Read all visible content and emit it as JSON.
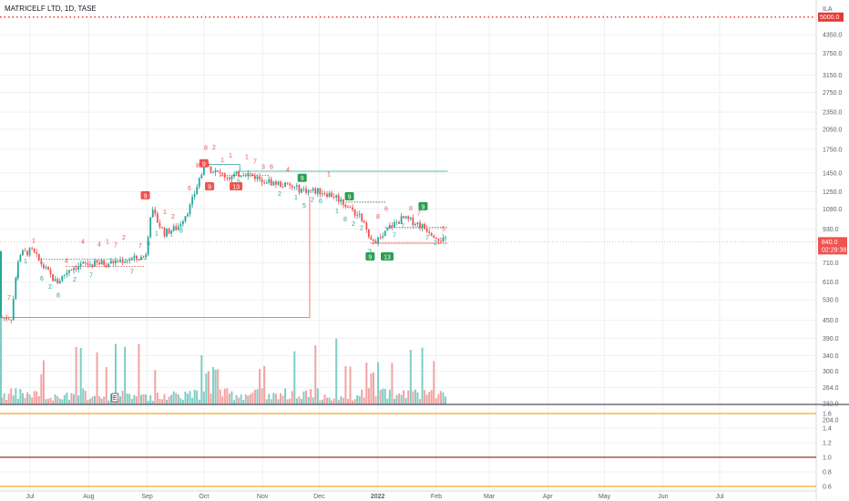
{
  "header": {
    "title": "MATRICELF LTD, 1D, TASE",
    "scale_mode": "ILA"
  },
  "price_badge": {
    "value": "840.0",
    "countdown": "02:29:38"
  },
  "target_badge": {
    "value": "5000.0"
  },
  "colors": {
    "up": "#26a69a",
    "down": "#ef5350",
    "up_vol": "#7fcdc4",
    "down_vol": "#f2a3a3",
    "grid": "#eef0f3",
    "axis_text": "#5d606b",
    "target_line": "#e53935",
    "level_1": "#f5a623",
    "level_2": "#8d3b2b"
  },
  "chart_data": [
    {
      "type": "candlestick",
      "title": "MATRICELF LTD, 1D, TASE",
      "x_tick_labels": [
        "Jul",
        "Aug",
        "Sep",
        "Oct",
        "Nov",
        "Dec",
        "2022",
        "Feb",
        "Mar",
        "Apr",
        "May",
        "Jun",
        "Jul"
      ],
      "y_tick_labels": [
        "204.0",
        "232.0",
        "264.0",
        "300.0",
        "340.0",
        "390.0",
        "450.0",
        "530.0",
        "610.0",
        "710.0",
        "930.0",
        "1090.0",
        "1250.0",
        "1450.0",
        "1750.0",
        "2050.0",
        "2350.0",
        "2750.0",
        "3150.0",
        "3750.0",
        "4350.0"
      ],
      "y_scale": "log",
      "last_price": 840,
      "target_level": 5000,
      "price_path": [
        {
          "date": "2021-06-21",
          "price": 460
        },
        {
          "date": "2021-06-25",
          "price": 760
        },
        {
          "date": "2021-07-02",
          "price": 780
        },
        {
          "date": "2021-07-08",
          "price": 690
        },
        {
          "date": "2021-07-15",
          "price": 605
        },
        {
          "date": "2021-07-22",
          "price": 680
        },
        {
          "date": "2021-07-29",
          "price": 700
        },
        {
          "date": "2021-08-05",
          "price": 705
        },
        {
          "date": "2021-08-12",
          "price": 710
        },
        {
          "date": "2021-08-19",
          "price": 725
        },
        {
          "date": "2021-08-26",
          "price": 735
        },
        {
          "date": "2021-08-31",
          "price": 745
        },
        {
          "date": "2021-09-03",
          "price": 1080
        },
        {
          "date": "2021-09-10",
          "price": 900
        },
        {
          "date": "2021-09-17",
          "price": 940
        },
        {
          "date": "2021-09-24",
          "price": 1120
        },
        {
          "date": "2021-10-01",
          "price": 1550
        },
        {
          "date": "2021-10-08",
          "price": 1450
        },
        {
          "date": "2021-10-15",
          "price": 1400
        },
        {
          "date": "2021-10-22",
          "price": 1460
        },
        {
          "date": "2021-10-29",
          "price": 1400
        },
        {
          "date": "2021-11-05",
          "price": 1350
        },
        {
          "date": "2021-11-12",
          "price": 1320
        },
        {
          "date": "2021-11-19",
          "price": 1280
        },
        {
          "date": "2021-11-26",
          "price": 1260
        },
        {
          "date": "2021-12-03",
          "price": 1250
        },
        {
          "date": "2021-12-10",
          "price": 1200
        },
        {
          "date": "2021-12-17",
          "price": 1100
        },
        {
          "date": "2021-12-24",
          "price": 1000
        },
        {
          "date": "2021-12-28",
          "price": 830
        },
        {
          "date": "2022-01-03",
          "price": 860
        },
        {
          "date": "2022-01-07",
          "price": 940
        },
        {
          "date": "2022-01-14",
          "price": 1010
        },
        {
          "date": "2022-01-21",
          "price": 980
        },
        {
          "date": "2022-01-28",
          "price": 920
        },
        {
          "date": "2022-02-03",
          "price": 860
        },
        {
          "date": "2022-02-07",
          "price": 840
        }
      ],
      "td_labels": [
        {
          "text": "9",
          "color": "red",
          "date": "2021-08-31",
          "price": 1210
        },
        {
          "text": "9",
          "color": "red",
          "date": "2021-10-01",
          "price": 1560
        },
        {
          "text": "9",
          "color": "red",
          "date": "2021-10-04",
          "price": 1300
        },
        {
          "text": "13",
          "color": "red",
          "date": "2021-10-18",
          "price": 1300
        },
        {
          "text": "9",
          "color": "green",
          "date": "2021-11-22",
          "price": 1390
        },
        {
          "text": "9",
          "color": "green",
          "date": "2021-12-17",
          "price": 1200
        },
        {
          "text": "9",
          "color": "green",
          "date": "2021-12-28",
          "price": 745
        },
        {
          "text": "13",
          "color": "green",
          "date": "2022-01-06",
          "price": 745
        },
        {
          "text": "9",
          "color": "green",
          "date": "2022-01-25",
          "price": 1110
        }
      ],
      "event_marker": "E"
    },
    {
      "type": "line",
      "y_tick_labels": [
        "1.6",
        "1.4",
        "1.2",
        "1.0",
        "0.8",
        "0.6"
      ],
      "ylim": [
        0.55,
        1.7
      ],
      "levels": [
        1.6,
        1.0,
        0.6
      ]
    }
  ]
}
